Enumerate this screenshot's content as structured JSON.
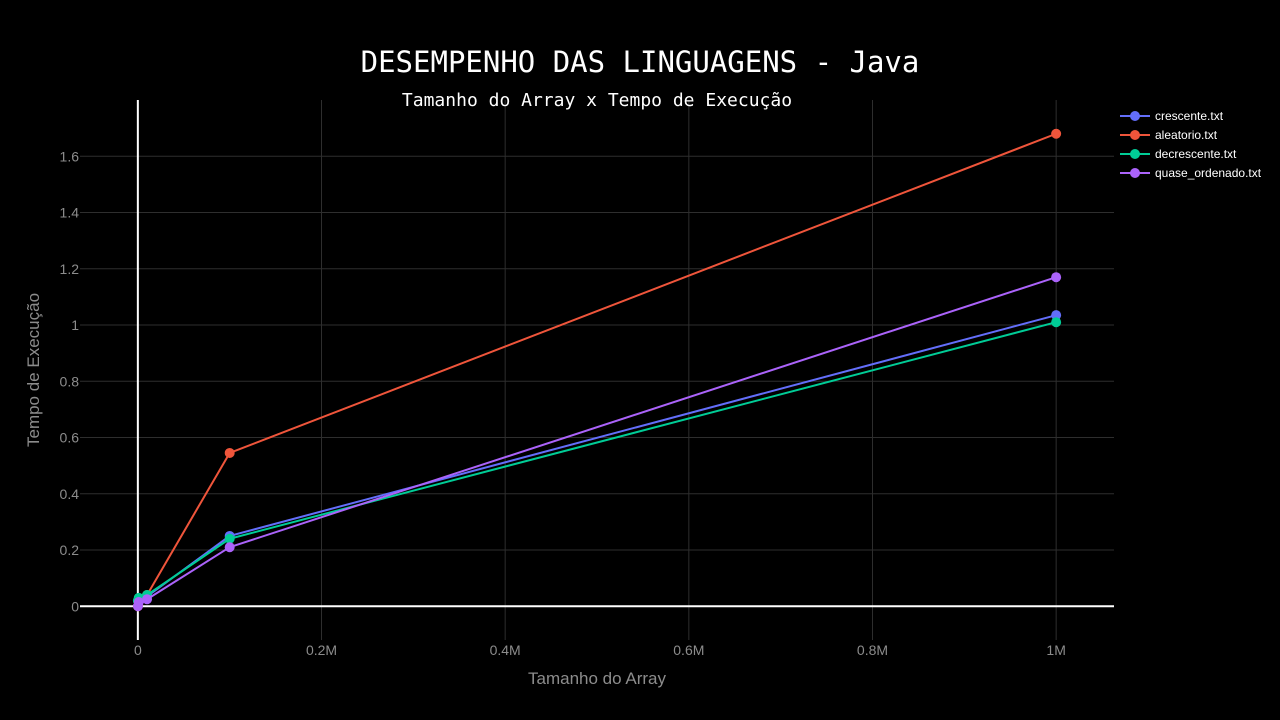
{
  "chart_data": {
    "type": "line",
    "title": "DESEMPENHO DAS LINGUAGENS - Java",
    "subtitle": "Tamanho do Array x Tempo de Execução",
    "xlabel": "Tamanho do Array",
    "ylabel": "Tempo de Execução",
    "xlim": [
      -63000,
      1063000
    ],
    "ylim": [
      -0.12,
      1.8
    ],
    "grid": true,
    "legend_position": "top-right",
    "x_ticks": [
      {
        "value": 0,
        "label": "0"
      },
      {
        "value": 200000,
        "label": "0.2M"
      },
      {
        "value": 400000,
        "label": "0.4M"
      },
      {
        "value": 600000,
        "label": "0.6M"
      },
      {
        "value": 800000,
        "label": "0.8M"
      },
      {
        "value": 1000000,
        "label": "1M"
      }
    ],
    "y_ticks": [
      {
        "value": 0,
        "label": "0"
      },
      {
        "value": 0.2,
        "label": "0.2"
      },
      {
        "value": 0.4,
        "label": "0.4"
      },
      {
        "value": 0.6,
        "label": "0.6"
      },
      {
        "value": 0.8,
        "label": "0.8"
      },
      {
        "value": 1.0,
        "label": "1"
      },
      {
        "value": 1.2,
        "label": "1.2"
      },
      {
        "value": 1.4,
        "label": "1.4"
      },
      {
        "value": 1.6,
        "label": "1.6"
      }
    ],
    "x": [
      100,
      1000,
      10000,
      100000,
      1000000
    ],
    "series": [
      {
        "name": "crescente.txt",
        "color": "#636efa",
        "values": [
          0.02,
          0.025,
          0.035,
          0.25,
          1.035
        ]
      },
      {
        "name": "aleatorio.txt",
        "color": "#ef553b",
        "values": [
          0.0,
          0.02,
          0.04,
          0.545,
          1.68
        ]
      },
      {
        "name": "decrescente.txt",
        "color": "#00cc96",
        "values": [
          0.02,
          0.03,
          0.04,
          0.24,
          1.01
        ]
      },
      {
        "name": "quase_ordenado.txt",
        "color": "#ab63fa",
        "values": [
          0.0,
          0.015,
          0.025,
          0.21,
          1.17
        ]
      }
    ]
  }
}
